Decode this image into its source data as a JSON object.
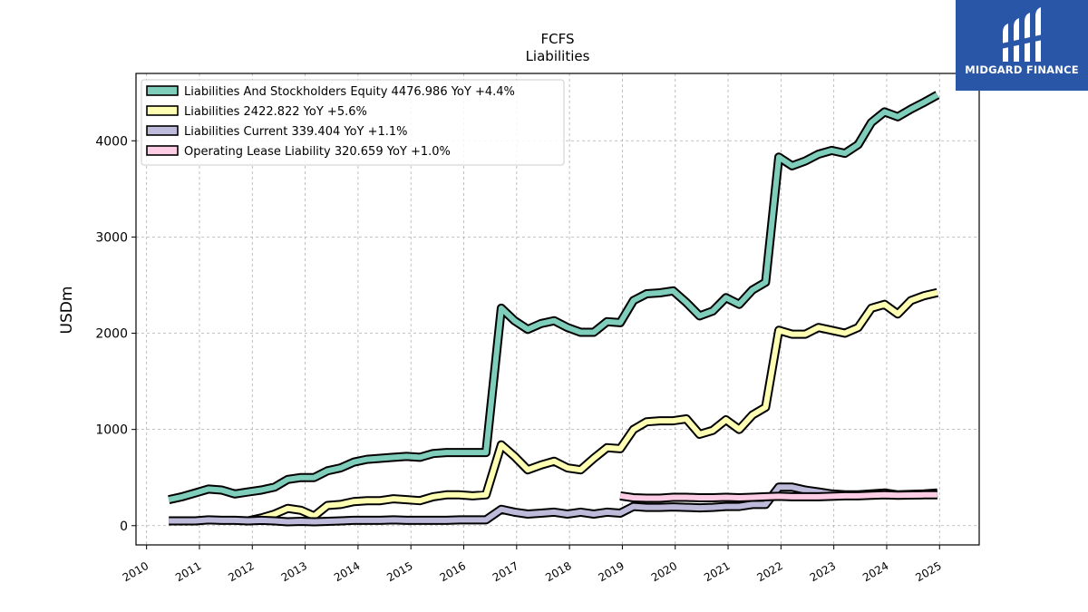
{
  "brand": {
    "name": "MIDGARD FINANCE",
    "logo_icon": "midgard-logo-icon",
    "color": "#2a56a8"
  },
  "chart_data": {
    "type": "line",
    "title": "FCFS",
    "subtitle": "Liabilities",
    "xlabel": "",
    "ylabel": "USDm",
    "xlim": [
      2009.8,
      2025.75
    ],
    "ylim": [
      -200,
      4700
    ],
    "x_ticks": [
      "2010",
      "2011",
      "2012",
      "2013",
      "2014",
      "2015",
      "2016",
      "2017",
      "2018",
      "2019",
      "2020",
      "2021",
      "2022",
      "2023",
      "2024",
      "2025"
    ],
    "y_ticks": [
      0,
      1000,
      2000,
      3000,
      4000
    ],
    "grid": true,
    "legend_position": "top-left",
    "series": [
      {
        "name": "Liabilities And Stockholders Equity",
        "legend": "Liabilities And Stockholders Equity  4476.986 YoY +4.4%",
        "color": "#7fcdbb",
        "points": [
          [
            2010.42,
            270
          ],
          [
            2010.67,
            300
          ],
          [
            2010.92,
            340
          ],
          [
            2011.17,
            380
          ],
          [
            2011.42,
            370
          ],
          [
            2011.67,
            330
          ],
          [
            2011.92,
            350
          ],
          [
            2012.17,
            370
          ],
          [
            2012.42,
            400
          ],
          [
            2012.67,
            480
          ],
          [
            2012.92,
            500
          ],
          [
            2013.17,
            500
          ],
          [
            2013.42,
            570
          ],
          [
            2013.67,
            600
          ],
          [
            2013.92,
            660
          ],
          [
            2014.17,
            690
          ],
          [
            2014.42,
            700
          ],
          [
            2014.67,
            710
          ],
          [
            2014.92,
            720
          ],
          [
            2015.17,
            710
          ],
          [
            2015.42,
            750
          ],
          [
            2015.67,
            760
          ],
          [
            2015.92,
            760
          ],
          [
            2016.17,
            760
          ],
          [
            2016.42,
            760
          ],
          [
            2016.71,
            2260
          ],
          [
            2016.96,
            2130
          ],
          [
            2017.21,
            2040
          ],
          [
            2017.46,
            2100
          ],
          [
            2017.71,
            2130
          ],
          [
            2017.96,
            2060
          ],
          [
            2018.21,
            2010
          ],
          [
            2018.46,
            2010
          ],
          [
            2018.71,
            2120
          ],
          [
            2018.96,
            2110
          ],
          [
            2019.21,
            2340
          ],
          [
            2019.46,
            2410
          ],
          [
            2019.71,
            2420
          ],
          [
            2019.96,
            2440
          ],
          [
            2020.21,
            2320
          ],
          [
            2020.46,
            2180
          ],
          [
            2020.71,
            2230
          ],
          [
            2020.96,
            2370
          ],
          [
            2021.21,
            2300
          ],
          [
            2021.46,
            2450
          ],
          [
            2021.71,
            2530
          ],
          [
            2021.96,
            3830
          ],
          [
            2022.21,
            3740
          ],
          [
            2022.46,
            3790
          ],
          [
            2022.71,
            3860
          ],
          [
            2022.96,
            3900
          ],
          [
            2023.21,
            3870
          ],
          [
            2023.46,
            3960
          ],
          [
            2023.71,
            4190
          ],
          [
            2023.96,
            4300
          ],
          [
            2024.21,
            4250
          ],
          [
            2024.46,
            4330
          ],
          [
            2024.71,
            4400
          ],
          [
            2024.96,
            4476.986
          ]
        ]
      },
      {
        "name": "Liabilities",
        "legend": "Liabilities  2422.822 YoY +5.6%",
        "color": "#ffffb3",
        "points": [
          [
            2011.92,
            50
          ],
          [
            2012.17,
            80
          ],
          [
            2012.42,
            120
          ],
          [
            2012.67,
            180
          ],
          [
            2012.92,
            160
          ],
          [
            2013.17,
            100
          ],
          [
            2013.42,
            210
          ],
          [
            2013.67,
            220
          ],
          [
            2013.92,
            250
          ],
          [
            2014.17,
            260
          ],
          [
            2014.42,
            260
          ],
          [
            2014.67,
            280
          ],
          [
            2014.92,
            270
          ],
          [
            2015.17,
            260
          ],
          [
            2015.42,
            300
          ],
          [
            2015.67,
            320
          ],
          [
            2015.92,
            320
          ],
          [
            2016.17,
            310
          ],
          [
            2016.42,
            320
          ],
          [
            2016.71,
            840
          ],
          [
            2016.96,
            720
          ],
          [
            2017.21,
            580
          ],
          [
            2017.46,
            630
          ],
          [
            2017.71,
            670
          ],
          [
            2017.96,
            600
          ],
          [
            2018.21,
            580
          ],
          [
            2018.46,
            700
          ],
          [
            2018.71,
            810
          ],
          [
            2018.96,
            800
          ],
          [
            2019.21,
            1000
          ],
          [
            2019.46,
            1080
          ],
          [
            2019.71,
            1090
          ],
          [
            2019.96,
            1090
          ],
          [
            2020.21,
            1110
          ],
          [
            2020.46,
            950
          ],
          [
            2020.71,
            990
          ],
          [
            2020.96,
            1100
          ],
          [
            2021.21,
            1000
          ],
          [
            2021.46,
            1150
          ],
          [
            2021.71,
            1230
          ],
          [
            2021.96,
            2030
          ],
          [
            2022.21,
            1990
          ],
          [
            2022.46,
            1990
          ],
          [
            2022.71,
            2060
          ],
          [
            2022.96,
            2030
          ],
          [
            2023.21,
            2000
          ],
          [
            2023.46,
            2060
          ],
          [
            2023.71,
            2260
          ],
          [
            2023.96,
            2300
          ],
          [
            2024.21,
            2200
          ],
          [
            2024.46,
            2340
          ],
          [
            2024.71,
            2390
          ],
          [
            2024.96,
            2422.822
          ]
        ]
      },
      {
        "name": "Liabilities Current",
        "legend": "Liabilities Current  339.404 YoY +1.1%",
        "color": "#bebada",
        "points": [
          [
            2010.42,
            50
          ],
          [
            2010.67,
            50
          ],
          [
            2010.92,
            50
          ],
          [
            2011.17,
            60
          ],
          [
            2011.42,
            55
          ],
          [
            2011.67,
            55
          ],
          [
            2011.92,
            50
          ],
          [
            2012.17,
            55
          ],
          [
            2012.42,
            50
          ],
          [
            2012.67,
            40
          ],
          [
            2012.92,
            45
          ],
          [
            2013.17,
            40
          ],
          [
            2013.42,
            45
          ],
          [
            2013.67,
            50
          ],
          [
            2013.92,
            55
          ],
          [
            2014.17,
            55
          ],
          [
            2014.42,
            55
          ],
          [
            2014.67,
            60
          ],
          [
            2014.92,
            55
          ],
          [
            2015.17,
            55
          ],
          [
            2015.42,
            55
          ],
          [
            2015.67,
            55
          ],
          [
            2015.92,
            60
          ],
          [
            2016.17,
            60
          ],
          [
            2016.42,
            60
          ],
          [
            2016.71,
            170
          ],
          [
            2016.96,
            140
          ],
          [
            2017.21,
            120
          ],
          [
            2017.46,
            130
          ],
          [
            2017.71,
            140
          ],
          [
            2017.96,
            120
          ],
          [
            2018.21,
            140
          ],
          [
            2018.46,
            120
          ],
          [
            2018.71,
            140
          ],
          [
            2018.96,
            130
          ],
          [
            2019.21,
            200
          ],
          [
            2019.46,
            190
          ],
          [
            2019.71,
            190
          ],
          [
            2019.96,
            195
          ],
          [
            2020.21,
            190
          ],
          [
            2020.46,
            185
          ],
          [
            2020.71,
            190
          ],
          [
            2020.96,
            200
          ],
          [
            2021.21,
            200
          ],
          [
            2021.46,
            220
          ],
          [
            2021.71,
            220
          ],
          [
            2021.96,
            400
          ],
          [
            2022.21,
            400
          ],
          [
            2022.46,
            370
          ],
          [
            2022.71,
            350
          ],
          [
            2022.96,
            330
          ],
          [
            2023.21,
            320
          ],
          [
            2023.46,
            320
          ],
          [
            2023.71,
            330
          ],
          [
            2023.96,
            340
          ],
          [
            2024.21,
            320
          ],
          [
            2024.46,
            325
          ],
          [
            2024.71,
            330
          ],
          [
            2024.96,
            339.404
          ]
        ]
      },
      {
        "name": "Operating Lease Liability",
        "legend": "Operating Lease Liability  320.659 YoY +1.0%",
        "color": "#fccde5",
        "points": [
          [
            2018.96,
            310
          ],
          [
            2019.21,
            290
          ],
          [
            2019.46,
            285
          ],
          [
            2019.71,
            285
          ],
          [
            2019.96,
            295
          ],
          [
            2020.21,
            295
          ],
          [
            2020.46,
            290
          ],
          [
            2020.71,
            290
          ],
          [
            2020.96,
            295
          ],
          [
            2021.21,
            290
          ],
          [
            2021.46,
            295
          ],
          [
            2021.71,
            300
          ],
          [
            2021.96,
            305
          ],
          [
            2022.21,
            300
          ],
          [
            2022.46,
            300
          ],
          [
            2022.71,
            300
          ],
          [
            2022.96,
            305
          ],
          [
            2023.21,
            310
          ],
          [
            2023.46,
            310
          ],
          [
            2023.71,
            315
          ],
          [
            2023.96,
            320
          ],
          [
            2024.21,
            315
          ],
          [
            2024.46,
            318
          ],
          [
            2024.71,
            320
          ],
          [
            2024.96,
            320.659
          ]
        ]
      }
    ]
  }
}
